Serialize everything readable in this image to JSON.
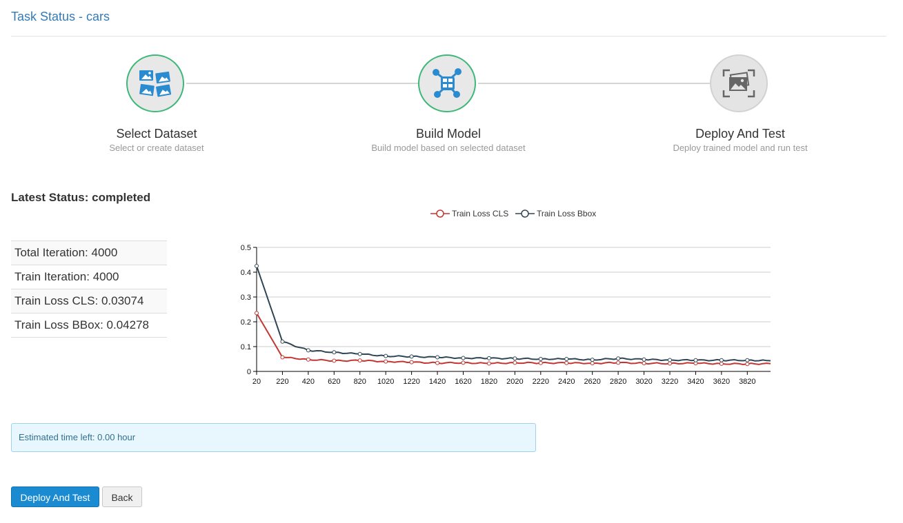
{
  "page": {
    "title": "Task Status - cars"
  },
  "steps": [
    {
      "title": "Select Dataset",
      "subtitle": "Select or create dataset",
      "icon": "dataset-images-icon",
      "state": "done"
    },
    {
      "title": "Build Model",
      "subtitle": "Build model based on selected dataset",
      "icon": "model-network-icon",
      "state": "done"
    },
    {
      "title": "Deploy And Test",
      "subtitle": "Deploy trained model and run test",
      "icon": "deploy-image-scan-icon",
      "state": "todo"
    }
  ],
  "status": {
    "label": "Latest Status: completed"
  },
  "stats": [
    "Total Iteration: 4000",
    "Train Iteration: 4000",
    "Train Loss CLS: 0.03074",
    "Train Loss BBox: 0.04278"
  ],
  "estimate": {
    "text": "Estimated time left: 0.00 hour"
  },
  "buttons": {
    "deploy": "Deploy And Test",
    "back": "Back"
  },
  "colors": {
    "accent": "#337ab7",
    "done_border": "#3cb878",
    "cls_line": "#c23531",
    "bbox_line": "#2f4554",
    "primary_button": "#1a8bd1"
  },
  "chart_data": {
    "type": "line",
    "title": "",
    "xlabel": "",
    "ylabel": "",
    "legend": "top-center",
    "grid": true,
    "ylim": [
      0,
      0.5
    ],
    "yticks": [
      "0",
      "0.1",
      "0.2",
      "0.3",
      "0.4",
      "0.5"
    ],
    "xlim": [
      20,
      4000
    ],
    "xticks": [
      "20",
      "220",
      "420",
      "620",
      "820",
      "1020",
      "1220",
      "1420",
      "1620",
      "1820",
      "2020",
      "2220",
      "2420",
      "2620",
      "2820",
      "3020",
      "3220",
      "3420",
      "3620",
      "3820"
    ],
    "x": [
      20,
      220,
      420,
      620,
      820,
      1020,
      1220,
      1420,
      1620,
      1820,
      2020,
      2220,
      2420,
      2620,
      2820,
      3020,
      3220,
      3420,
      3620,
      3820,
      4000
    ],
    "series": [
      {
        "name": "Train Loss CLS",
        "values": [
          0.235,
          0.057,
          0.048,
          0.043,
          0.044,
          0.04,
          0.037,
          0.034,
          0.035,
          0.032,
          0.035,
          0.034,
          0.034,
          0.033,
          0.035,
          0.033,
          0.032,
          0.033,
          0.031,
          0.03,
          0.031
        ]
      },
      {
        "name": "Train Loss Bbox",
        "values": [
          0.425,
          0.12,
          0.085,
          0.077,
          0.07,
          0.062,
          0.06,
          0.057,
          0.054,
          0.053,
          0.052,
          0.05,
          0.05,
          0.047,
          0.052,
          0.048,
          0.046,
          0.045,
          0.045,
          0.045,
          0.043
        ]
      }
    ]
  }
}
